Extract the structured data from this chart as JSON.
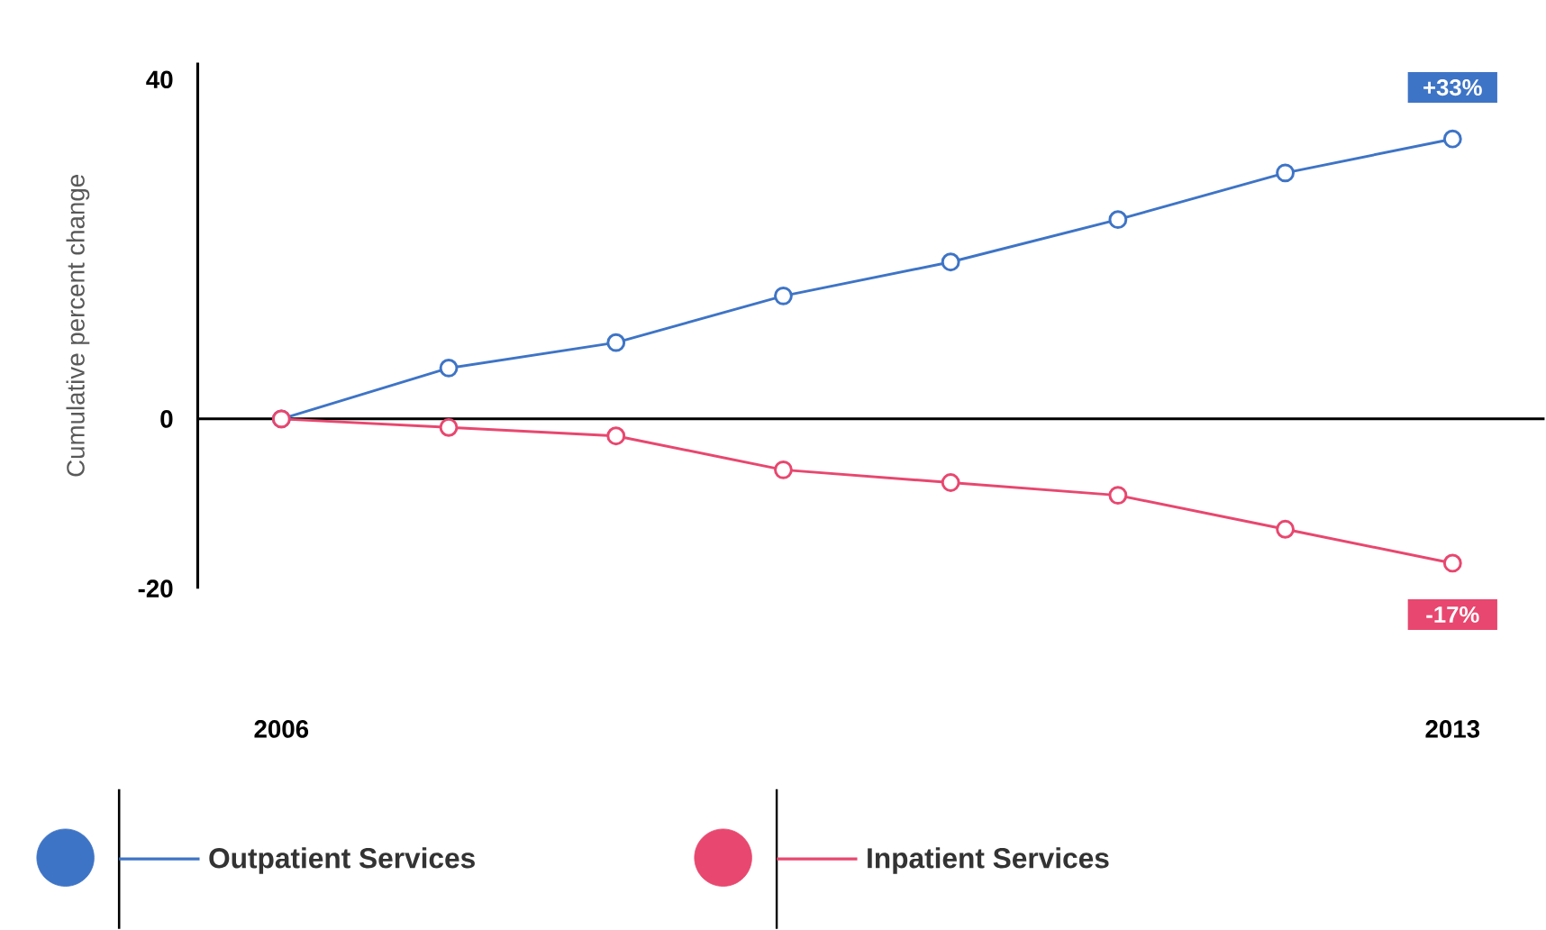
{
  "chart_data": {
    "type": "line",
    "ylabel": "Cumulative percent change",
    "x": [
      2006,
      2007,
      2008,
      2009,
      2010,
      2011,
      2012,
      2013
    ],
    "series": [
      {
        "name": "Outpatient Services",
        "color": "#3e74c6",
        "values": [
          0,
          6,
          9,
          14.5,
          18.5,
          23.5,
          29,
          33
        ]
      },
      {
        "name": "Inpatient Services",
        "color": "#e8476f",
        "values": [
          0,
          -1,
          -2,
          -6,
          -7.5,
          -9,
          -13,
          -17
        ]
      }
    ],
    "xlim": [
      2005.5,
      2013.55
    ],
    "xticks": [
      2006,
      2013
    ],
    "ylim": [
      -20,
      42
    ],
    "yticks": [
      -20,
      0,
      40
    ],
    "annotations": [
      {
        "text": "+33%",
        "x": 2013,
        "y": 33
      },
      {
        "text": "-17%",
        "x": 2013,
        "y": -17
      }
    ],
    "ref_lines": [
      {
        "axis": "y",
        "value": 0
      }
    ],
    "marker": "circle",
    "line_style": "solid",
    "grid": false,
    "legend": "bottom"
  }
}
